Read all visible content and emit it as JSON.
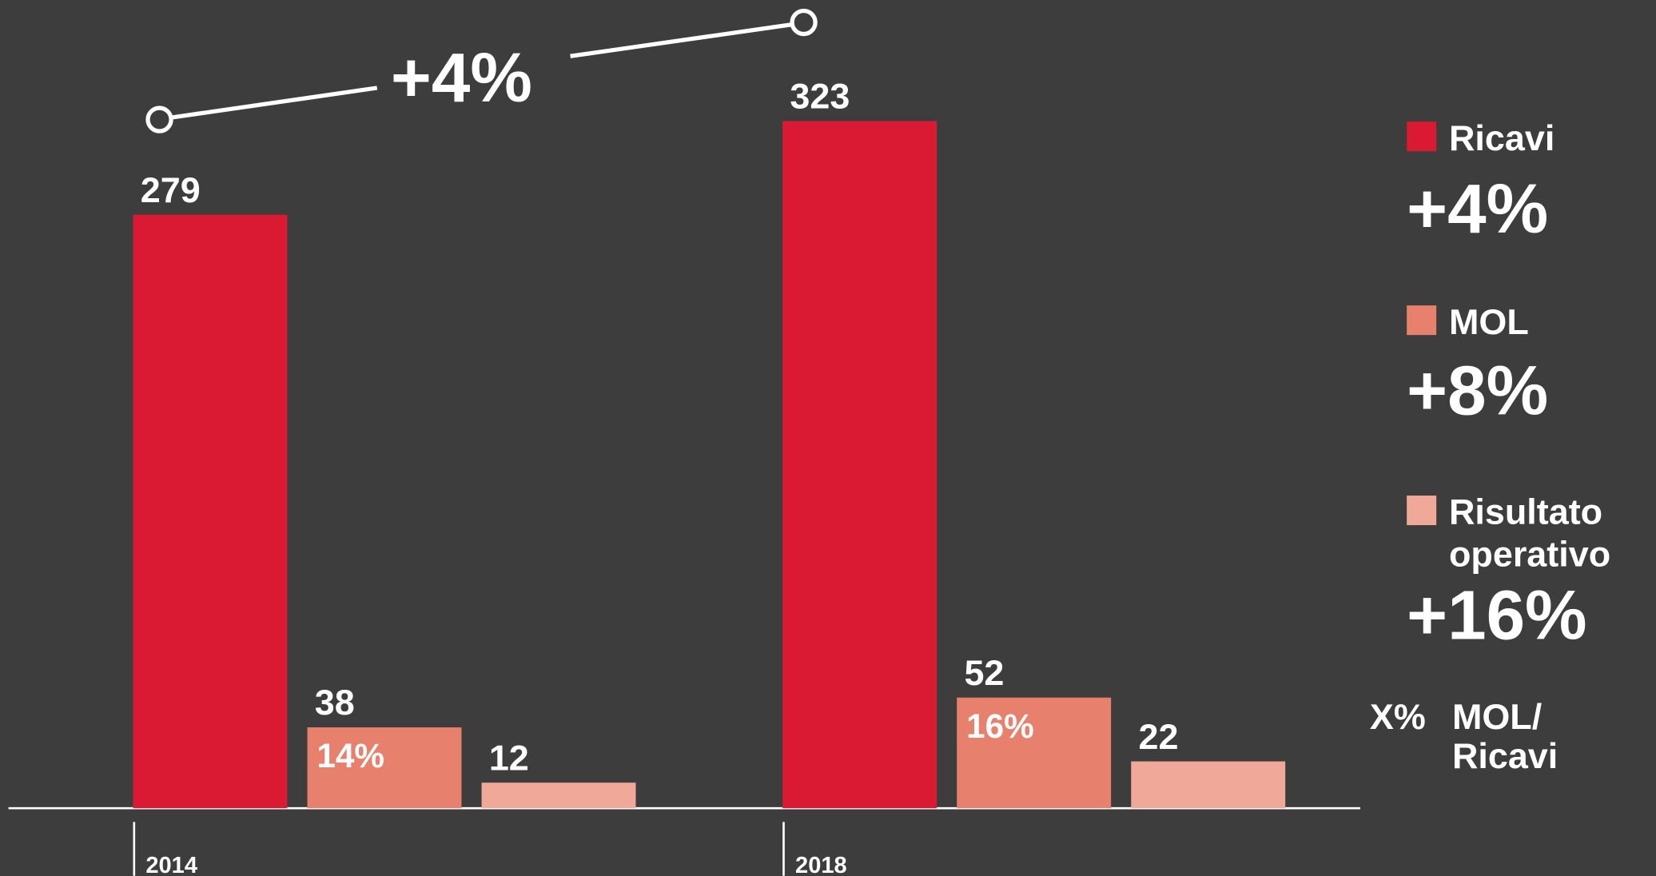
{
  "chart_data": {
    "type": "bar",
    "categories": [
      "2014",
      "2018"
    ],
    "series": [
      {
        "name": "Ricavi",
        "color": "#d91a32",
        "values": [
          279,
          323
        ],
        "change": "+4%"
      },
      {
        "name": "MOL",
        "color": "#e8806e",
        "values": [
          38,
          52
        ],
        "change": "+8%",
        "ratio_labels": [
          "14%",
          "16%"
        ]
      },
      {
        "name": "Risultato operativo",
        "color": "#f0a898",
        "values": [
          12,
          22
        ],
        "change": "+16%"
      }
    ],
    "annotation": "+4%",
    "note_key": "X%",
    "note": [
      "MOL/",
      "Ricavi"
    ]
  }
}
